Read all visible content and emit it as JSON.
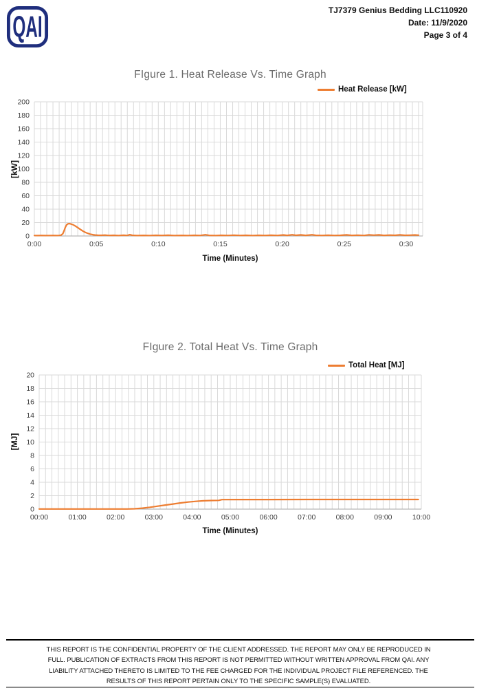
{
  "header": {
    "logo_text": "QAI",
    "logo_color": "#1f2e7d",
    "project_line": "TJ7379 Genius Bedding LLC110920",
    "date_line": "Date: 11/9/2020",
    "page_line": "Page 3 of 4"
  },
  "chart_data": [
    {
      "type": "line",
      "title": "FIgure 1. Heat Release Vs. Time Graph",
      "legend": "Heat Release [kW]",
      "legend_position": "top-right",
      "ylabel": "[kW]",
      "xlabel": "Time (Minutes)",
      "line_color": "#ED7D31",
      "grid_color": "#D9D9D9",
      "axis_color": "#A6A6A6",
      "grid": "on",
      "x_range": [
        0,
        31.333
      ],
      "y_range": [
        0,
        200
      ],
      "x_minor_step": 0.5,
      "y_ticks": [
        "0",
        "20",
        "40",
        "60",
        "80",
        "100",
        "120",
        "140",
        "160",
        "180",
        "200"
      ],
      "x_ticks": [
        {
          "label": "0:00",
          "t": 0
        },
        {
          "label": "0:05",
          "t": 5
        },
        {
          "label": "0:10",
          "t": 10
        },
        {
          "label": "0:15",
          "t": 15
        },
        {
          "label": "0:20",
          "t": 20
        },
        {
          "label": "0:25",
          "t": 25
        },
        {
          "label": "0:30",
          "t": 30
        }
      ],
      "points": [
        [
          0,
          0.7
        ],
        [
          0.3,
          0.6
        ],
        [
          0.6,
          0.8
        ],
        [
          0.9,
          0.6
        ],
        [
          1.2,
          0.7
        ],
        [
          1.5,
          0.8
        ],
        [
          1.8,
          0.7
        ],
        [
          2.0,
          0.8
        ],
        [
          2.15,
          1.2
        ],
        [
          2.3,
          3.5
        ],
        [
          2.4,
          8
        ],
        [
          2.5,
          13
        ],
        [
          2.6,
          16.5
        ],
        [
          2.7,
          18
        ],
        [
          2.8,
          18.5
        ],
        [
          2.9,
          18.2
        ],
        [
          3.0,
          17.5
        ],
        [
          3.15,
          16.5
        ],
        [
          3.3,
          15
        ],
        [
          3.5,
          12.5
        ],
        [
          3.7,
          10
        ],
        [
          3.9,
          7.5
        ],
        [
          4.1,
          5.5
        ],
        [
          4.3,
          4
        ],
        [
          4.5,
          2.8
        ],
        [
          4.7,
          2
        ],
        [
          4.9,
          1.4
        ],
        [
          5.1,
          1.1
        ],
        [
          5.4,
          1.0
        ],
        [
          5.7,
          1.3
        ],
        [
          6.0,
          0.8
        ],
        [
          6.4,
          1.0
        ],
        [
          6.8,
          0.7
        ],
        [
          7.2,
          1.1
        ],
        [
          7.5,
          0.8
        ],
        [
          7.7,
          1.9
        ],
        [
          7.9,
          1.0
        ],
        [
          8.3,
          0.7
        ],
        [
          8.8,
          0.9
        ],
        [
          9.3,
          0.7
        ],
        [
          9.8,
          1.0
        ],
        [
          10.3,
          0.8
        ],
        [
          10.8,
          1.1
        ],
        [
          11.3,
          0.7
        ],
        [
          11.9,
          0.9
        ],
        [
          12.4,
          0.7
        ],
        [
          12.9,
          1.0
        ],
        [
          13.4,
          0.8
        ],
        [
          13.8,
          1.8
        ],
        [
          14.1,
          0.9
        ],
        [
          14.6,
          0.7
        ],
        [
          15.1,
          1.0
        ],
        [
          15.6,
          0.8
        ],
        [
          16.1,
          1.2
        ],
        [
          16.6,
          0.8
        ],
        [
          17.1,
          1.0
        ],
        [
          17.6,
          0.7
        ],
        [
          18.1,
          1.0
        ],
        [
          18.6,
          0.8
        ],
        [
          19.1,
          1.1
        ],
        [
          19.6,
          0.8
        ],
        [
          20.1,
          1.5
        ],
        [
          20.4,
          0.9
        ],
        [
          20.8,
          1.8
        ],
        [
          21.1,
          1.0
        ],
        [
          21.5,
          1.6
        ],
        [
          21.9,
          0.9
        ],
        [
          22.4,
          1.8
        ],
        [
          22.7,
          1.0
        ],
        [
          23.2,
          0.8
        ],
        [
          23.7,
          1.1
        ],
        [
          24.2,
          0.8
        ],
        [
          24.7,
          1.0
        ],
        [
          25.2,
          1.6
        ],
        [
          25.6,
          0.9
        ],
        [
          26.1,
          1.2
        ],
        [
          26.6,
          0.8
        ],
        [
          27.0,
          1.7
        ],
        [
          27.4,
          1.2
        ],
        [
          27.8,
          1.6
        ],
        [
          28.2,
          0.9
        ],
        [
          28.7,
          1.3
        ],
        [
          29.1,
          1.0
        ],
        [
          29.5,
          1.7
        ],
        [
          29.9,
          1.0
        ],
        [
          30.3,
          1.2
        ],
        [
          30.7,
          1.5
        ],
        [
          31.0,
          1.2
        ]
      ]
    },
    {
      "type": "line",
      "title": "FIgure 2. Total Heat Vs. Time Graph",
      "legend": "Total Heat [MJ]",
      "legend_position": "top-right",
      "ylabel": "[MJ]",
      "xlabel": "Time (Minutes)",
      "line_color": "#ED7D31",
      "grid_color": "#D9D9D9",
      "axis_color": "#A6A6A6",
      "grid": "on",
      "x_range": [
        0,
        10
      ],
      "y_range": [
        0,
        20
      ],
      "x_minor_step": 0.1666667,
      "y_ticks": [
        "0",
        "2",
        "4",
        "6",
        "8",
        "10",
        "12",
        "14",
        "16",
        "18",
        "20"
      ],
      "x_ticks": [
        {
          "label": "00:00",
          "t": 0
        },
        {
          "label": "01:00",
          "t": 1
        },
        {
          "label": "02:00",
          "t": 2
        },
        {
          "label": "03:00",
          "t": 3
        },
        {
          "label": "04:00",
          "t": 4
        },
        {
          "label": "05:00",
          "t": 5
        },
        {
          "label": "06:00",
          "t": 6
        },
        {
          "label": "07:00",
          "t": 7
        },
        {
          "label": "08:00",
          "t": 8
        },
        {
          "label": "09:00",
          "t": 9
        },
        {
          "label": "10:00",
          "t": 10
        }
      ],
      "points": [
        [
          0,
          0.02
        ],
        [
          0.5,
          0.02
        ],
        [
          1,
          0.02
        ],
        [
          1.5,
          0.02
        ],
        [
          2,
          0.02
        ],
        [
          2.3,
          0.02
        ],
        [
          2.5,
          0.05
        ],
        [
          2.7,
          0.14
        ],
        [
          2.9,
          0.28
        ],
        [
          3.1,
          0.44
        ],
        [
          3.3,
          0.6
        ],
        [
          3.5,
          0.76
        ],
        [
          3.7,
          0.92
        ],
        [
          3.9,
          1.06
        ],
        [
          4.1,
          1.16
        ],
        [
          4.3,
          1.24
        ],
        [
          4.5,
          1.28
        ],
        [
          4.7,
          1.3
        ],
        [
          4.78,
          1.42
        ],
        [
          5.2,
          1.43
        ],
        [
          6,
          1.43
        ],
        [
          7,
          1.44
        ],
        [
          8,
          1.44
        ],
        [
          9,
          1.44
        ],
        [
          9.5,
          1.44
        ],
        [
          9.92,
          1.44
        ]
      ]
    }
  ],
  "footer": {
    "lines": [
      "THIS REPORT IS THE CONFIDENTIAL PROPERTY OF THE CLIENT ADDRESSED. THE REPORT MAY ONLY BE REPRODUCED IN",
      "FULL. PUBLICATION OF EXTRACTS FROM THIS REPORT IS NOT PERMITTED WITHOUT WRITTEN APPROVAL FROM QAI. ANY",
      "LIABILITY ATTACHED THERETO IS LIMITED TO THE FEE CHARGED FOR THE INDIVIDUAL PROJECT FILE REFERENCED. THE",
      "RESULTS OF THIS REPORT PERTAIN ONLY TO THE SPECIFIC SAMPLE(S) EVALUATED."
    ]
  }
}
